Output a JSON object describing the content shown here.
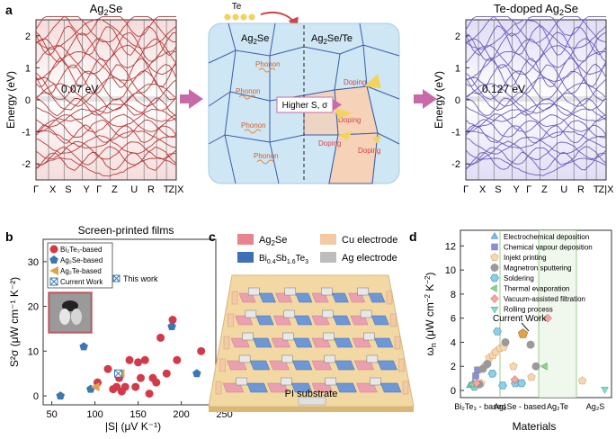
{
  "panel_labels": {
    "a": "a",
    "b": "b",
    "c": "c",
    "d": "d"
  },
  "colors": {
    "band_red": "#b83a3a",
    "band_purple": "#6a5cc0",
    "grain_bg": "#cfe6f4",
    "grain_line": "#3a5ea8",
    "arrow_pink": "#c96aa8",
    "te_dot": "#f3d35b",
    "bi2te3": "#d23a4a",
    "ag2se": "#3c78b0",
    "ag2te": "#e0a24e",
    "ag2se_leg": "#e8838f",
    "bi_leg": "#3f6fb8",
    "cu_leg": "#f4c9a4",
    "ag_leg": "#bdbdbd"
  },
  "band_left": {
    "title": "Ag",
    "title_sub": "2",
    "title_tail": "Se",
    "ylabel": "Energy (eV)",
    "gap": "0.07 eV",
    "yticks": [
      "-2",
      "-1",
      "0",
      "1",
      "2"
    ],
    "kpoints": [
      "Γ",
      "X",
      "S",
      "Y",
      "Γ",
      "Z",
      "U",
      "R",
      "T",
      "Z|X"
    ]
  },
  "band_right": {
    "title": "Te-doped Ag",
    "title_sub": "2",
    "title_tail": "Se",
    "ylabel": "Energy (eV)",
    "gap": "0.127 eV",
    "yticks": [
      "-2",
      "-1",
      "0",
      "1",
      "2"
    ],
    "kpoints": [
      "Γ",
      "X",
      "S",
      "Y",
      "Γ",
      "Z",
      "U",
      "R",
      "T",
      "Z|X"
    ]
  },
  "schematic": {
    "te_label": "Te",
    "left_label_main": "Ag",
    "left_label_sub": "2",
    "left_label_tail": "Se",
    "right_label_main": "Ag",
    "right_label_sub": "2",
    "right_label_tail": "Se/Te",
    "phonon": "Phonon",
    "doping": "Doping",
    "arrow_text": "Higher S, σ"
  },
  "chart_data": [
    {
      "type": "scatter",
      "title": "Screen-printed films",
      "xlabel": "|S| (μV K⁻¹)",
      "ylabel": "S²σ (μW cm⁻¹ K⁻²)",
      "xticks": [
        "50",
        "100",
        "150",
        "200",
        "250"
      ],
      "yticks": [
        "0",
        "10",
        "20",
        "30"
      ],
      "xlim": [
        40,
        240
      ],
      "ylim": [
        -2,
        35
      ],
      "legend": [
        "Bi₂Te₃-based",
        "Ag₂Se-based",
        "Ag₂Te-based",
        "Current Work"
      ],
      "annotation": "This work",
      "series": [
        {
          "name": "Bi₂Te₃-based",
          "x": [
            103,
            115,
            121,
            125,
            128,
            131,
            135,
            140,
            147,
            150,
            153,
            158,
            163,
            167,
            171,
            176,
            183,
            190,
            195,
            223
          ],
          "y": [
            3,
            6,
            1.5,
            2,
            4,
            1,
            2,
            8,
            2,
            7.5,
            4,
            8,
            0.5,
            4,
            3,
            13,
            5,
            17,
            8,
            10
          ]
        },
        {
          "name": "Ag₂Se-based",
          "x": [
            60,
            87,
            95,
            189,
            218
          ],
          "y": [
            0,
            11,
            1.5,
            15.5,
            5
          ]
        },
        {
          "name": "Ag₂Te-based",
          "x": [
            100,
            129
          ],
          "y": [
            2,
            5
          ]
        },
        {
          "name": "Current Work",
          "x": [
            127
          ],
          "y": [
            5
          ]
        }
      ]
    },
    {
      "type": "scatter",
      "xlabel": "Materials",
      "ylabel": "ω_n (μW cm⁻² K⁻²)",
      "yticks": [
        "0",
        "2",
        "4",
        "6",
        "8",
        "10",
        "12"
      ],
      "ylim": [
        0,
        13
      ],
      "categories": [
        "Bi₂Te₃ - based",
        "Ag₂Se - based",
        "Ag₂Te",
        "Ag₂S"
      ],
      "legend": [
        "Electrochemical deposition",
        "Chemical vapour deposition",
        "Injekt printing",
        "Magnetron sputtering",
        "Soldering",
        "Thermal evaporation",
        "Vacuum-assisted filtration",
        "Rolling process"
      ],
      "annotation": "Current Work",
      "series": [
        {
          "name": "Electrochemical deposition",
          "x": [
            0.05,
            0.12
          ],
          "y": [
            0.4,
            0.6
          ]
        },
        {
          "name": "Chemical vapour deposition",
          "x": [
            0.18,
            0.22
          ],
          "y": [
            1.2,
            1.7
          ]
        },
        {
          "name": "Injekt printing",
          "x": [
            0.3,
            0.4,
            0.48,
            0.56,
            0.62,
            0.72,
            0.8,
            1.02,
            1.42,
            2.55
          ],
          "y": [
            0.6,
            2.1,
            2.7,
            2.9,
            3.2,
            3.5,
            3.6,
            2.0,
            1.1,
            0.8
          ]
        },
        {
          "name": "Magnetron sputtering",
          "x": [
            0.26,
            0.34,
            0.44,
            0.84,
            1.4,
            1.52
          ],
          "y": [
            0.5,
            1.8,
            2.2,
            4.0,
            3.8,
            2.0
          ]
        },
        {
          "name": "Soldering",
          "x": [
            0.15,
            0.55,
            0.66,
            0.78,
            1.06,
            1.2
          ],
          "y": [
            0.3,
            1.4,
            4.9,
            0.4,
            0.6,
            0.6
          ]
        },
        {
          "name": "Thermal evaporation",
          "x": [
            0.1,
            1.72
          ],
          "y": [
            0.5,
            2.0
          ]
        },
        {
          "name": "Vacuum-assisted filtration",
          "x": [
            0.2,
            1.05,
            1.78
          ],
          "y": [
            0.6,
            0.9,
            6.0
          ]
        },
        {
          "name": "Rolling process",
          "x": [
            3.05
          ],
          "y": [
            0.1
          ]
        },
        {
          "name": "Current Work",
          "x": [
            1.23
          ],
          "y": [
            4.7
          ]
        }
      ]
    }
  ],
  "device": {
    "legend": [
      {
        "label_main": "Ag",
        "label_sub": "2",
        "label_tail": "Se"
      },
      {
        "label_main": "Cu electrode"
      },
      {
        "label_main": "Bi",
        "label_sub": "0.4",
        "label_mid": "Sb",
        "label_sub2": "1.6",
        "label_tail": "Te",
        "label_sub3": "3"
      },
      {
        "label_main": "Ag electrode"
      }
    ],
    "substrate": "PI substrate"
  }
}
